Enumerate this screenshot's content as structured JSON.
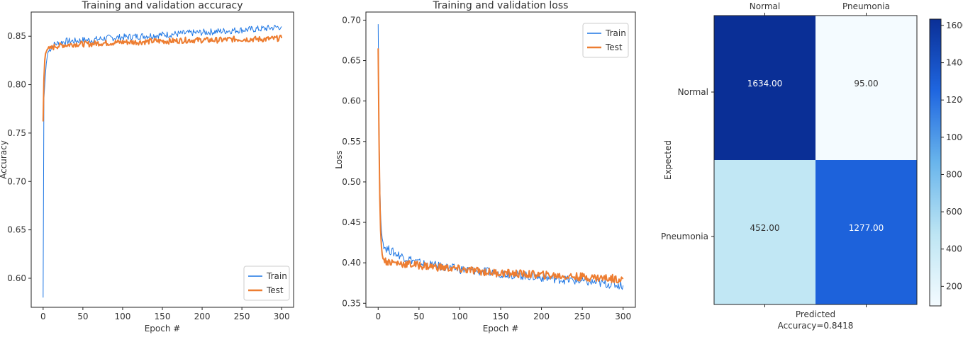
{
  "chart_data": [
    {
      "type": "line",
      "title": "Training and validation accuracy",
      "xlabel": "Epoch #",
      "ylabel": "Accuracy",
      "xlim": [
        -15,
        315
      ],
      "ylim": [
        0.57,
        0.875
      ],
      "xticks": [
        0,
        50,
        100,
        150,
        200,
        250,
        300
      ],
      "yticks": [
        0.6,
        0.65,
        0.7,
        0.75,
        0.8,
        0.85
      ],
      "ytick_labels": [
        "0.60",
        "0.65",
        "0.70",
        "0.75",
        "0.80",
        "0.85"
      ],
      "legend_position": "bottom-right",
      "grid": false,
      "series": [
        {
          "name": "Train",
          "color": "#1f77e4",
          "x": [
            0,
            1,
            2,
            3,
            4,
            5,
            6,
            8,
            10,
            12,
            15,
            20,
            25,
            30,
            40,
            50,
            60,
            70,
            80,
            100,
            120,
            140,
            160,
            180,
            200,
            220,
            240,
            260,
            280,
            300
          ],
          "y": [
            0.58,
            0.785,
            0.8,
            0.812,
            0.822,
            0.828,
            0.833,
            0.836,
            0.838,
            0.84,
            0.842,
            0.843,
            0.844,
            0.845,
            0.845,
            0.846,
            0.846,
            0.847,
            0.848,
            0.849,
            0.85,
            0.851,
            0.852,
            0.853,
            0.854,
            0.855,
            0.856,
            0.857,
            0.858,
            0.86
          ]
        },
        {
          "name": "Test",
          "color": "#ed7d31",
          "x": [
            0,
            1,
            2,
            3,
            4,
            5,
            6,
            8,
            10,
            12,
            15,
            20,
            25,
            30,
            40,
            50,
            60,
            70,
            80,
            100,
            120,
            140,
            160,
            180,
            200,
            220,
            240,
            260,
            280,
            300
          ],
          "y": [
            0.762,
            0.805,
            0.825,
            0.832,
            0.834,
            0.836,
            0.837,
            0.836,
            0.838,
            0.838,
            0.84,
            0.84,
            0.841,
            0.841,
            0.842,
            0.842,
            0.842,
            0.843,
            0.843,
            0.844,
            0.844,
            0.845,
            0.845,
            0.846,
            0.846,
            0.846,
            0.847,
            0.847,
            0.847,
            0.848
          ]
        }
      ]
    },
    {
      "type": "line",
      "title": "Training and validation loss",
      "xlabel": "Epoch #",
      "ylabel": "Loss",
      "xlim": [
        -15,
        315
      ],
      "ylim": [
        0.345,
        0.71
      ],
      "xticks": [
        0,
        50,
        100,
        150,
        200,
        250,
        300
      ],
      "yticks": [
        0.35,
        0.4,
        0.45,
        0.5,
        0.55,
        0.6,
        0.65,
        0.7
      ],
      "ytick_labels": [
        "0.35",
        "0.40",
        "0.45",
        "0.50",
        "0.55",
        "0.60",
        "0.65",
        "0.70"
      ],
      "legend_position": "top-right",
      "grid": false,
      "series": [
        {
          "name": "Train",
          "color": "#1f77e4",
          "x": [
            0,
            1,
            2,
            3,
            4,
            5,
            6,
            8,
            10,
            15,
            20,
            30,
            40,
            50,
            60,
            80,
            100,
            120,
            140,
            160,
            180,
            200,
            220,
            240,
            260,
            280,
            300
          ],
          "y": [
            0.695,
            0.58,
            0.5,
            0.46,
            0.44,
            0.43,
            0.425,
            0.42,
            0.418,
            0.415,
            0.412,
            0.408,
            0.404,
            0.4,
            0.398,
            0.395,
            0.392,
            0.39,
            0.388,
            0.386,
            0.384,
            0.382,
            0.38,
            0.378,
            0.376,
            0.374,
            0.372
          ]
        },
        {
          "name": "Test",
          "color": "#ed7d31",
          "x": [
            0,
            1,
            2,
            3,
            4,
            5,
            6,
            8,
            10,
            15,
            20,
            30,
            40,
            50,
            60,
            80,
            100,
            120,
            140,
            160,
            180,
            200,
            220,
            240,
            260,
            280,
            300
          ],
          "y": [
            0.665,
            0.56,
            0.48,
            0.44,
            0.42,
            0.41,
            0.405,
            0.403,
            0.402,
            0.401,
            0.4,
            0.399,
            0.398,
            0.397,
            0.396,
            0.394,
            0.392,
            0.39,
            0.388,
            0.387,
            0.386,
            0.385,
            0.384,
            0.383,
            0.382,
            0.381,
            0.38
          ]
        }
      ]
    },
    {
      "type": "heatmap",
      "col_labels": [
        "Normal",
        "Pneumonia"
      ],
      "row_labels": [
        "Normal",
        "Pneumonia"
      ],
      "values": [
        [
          1634,
          95
        ],
        [
          452,
          1277
        ]
      ],
      "cell_labels": [
        [
          "1634.00",
          "95.00"
        ],
        [
          "452.00",
          "1277.00"
        ]
      ],
      "ylabel": "Expected",
      "xlabel": "Predicted",
      "caption": "Accuracy=0.8418",
      "colorbar": {
        "ticks": [
          200,
          400,
          600,
          800,
          1000,
          1200,
          1400,
          1600
        ],
        "range": [
          95,
          1634
        ],
        "colors": [
          "#f4fbff",
          "#bde5f3",
          "#69b5ec",
          "#1f66e0",
          "#0a2f96"
        ]
      }
    }
  ]
}
